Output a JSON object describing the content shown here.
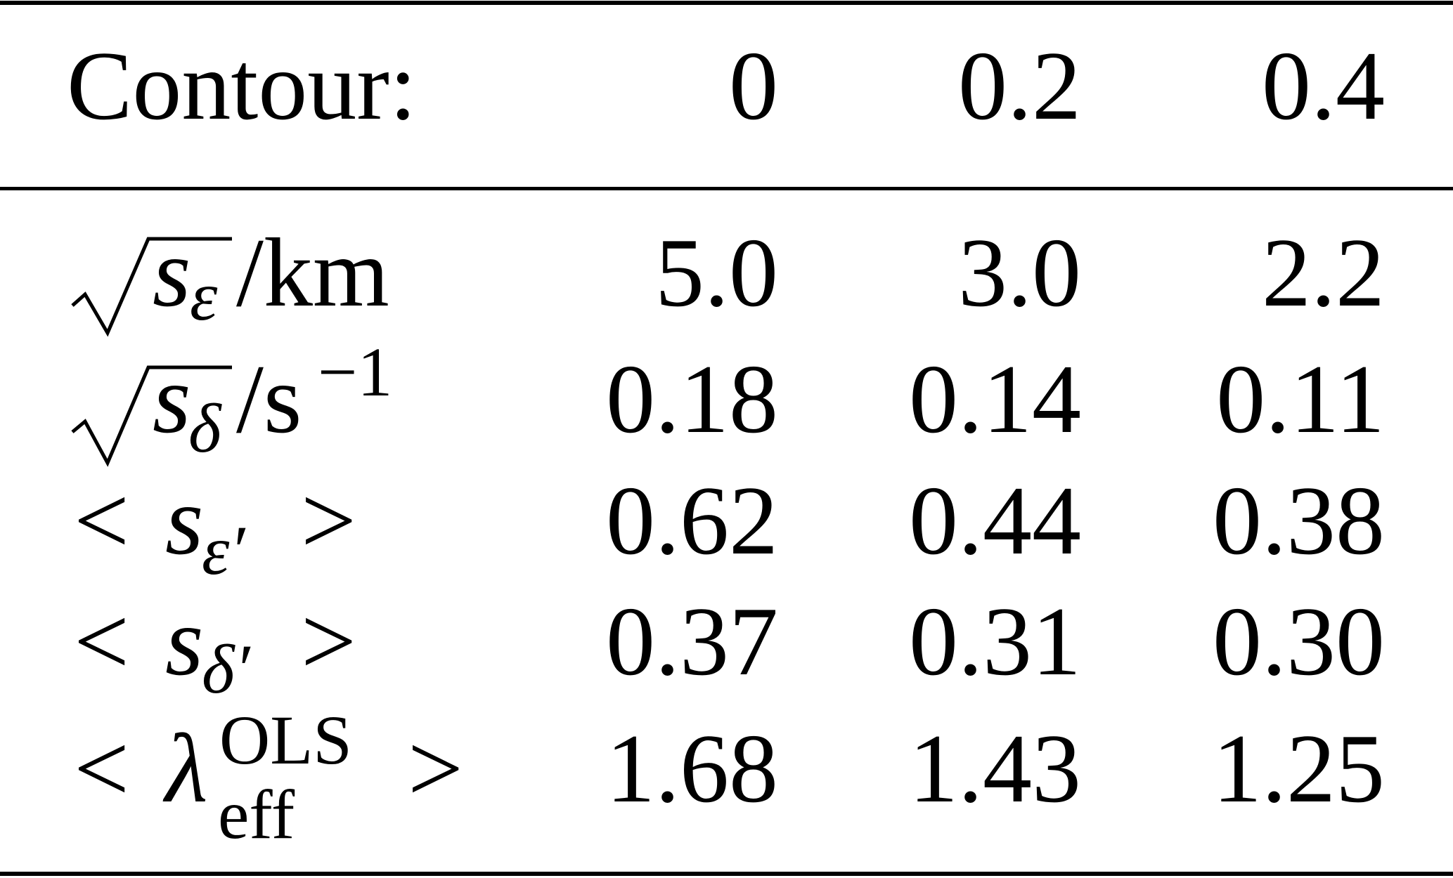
{
  "table": {
    "header": [
      "Contour:",
      "0",
      "0.2",
      "0.4"
    ],
    "rows": [
      {
        "label": {
          "base": "s",
          "sub": "ε",
          "unit": "/km"
        },
        "cells": [
          "5.0",
          "3.0",
          "2.2"
        ]
      },
      {
        "label": {
          "base": "s",
          "sub": "δ",
          "unit": "/s",
          "sup": "−1"
        },
        "cells": [
          "0.18",
          "0.14",
          "0.11"
        ]
      },
      {
        "label": {
          "open": "<",
          "base": "s",
          "sub": "ε′",
          "close": ">"
        },
        "cells": [
          "0.62",
          "0.44",
          "0.38"
        ]
      },
      {
        "label": {
          "open": "<",
          "base": "s",
          "sub": "δ′",
          "close": ">"
        },
        "cells": [
          "0.37",
          "0.31",
          "0.30"
        ]
      },
      {
        "label": {
          "open": "<",
          "base": "λ",
          "sub": "eff",
          "sup": "OLS",
          "close": ">"
        },
        "cells": [
          "1.68",
          "1.43",
          "1.25"
        ]
      }
    ]
  }
}
